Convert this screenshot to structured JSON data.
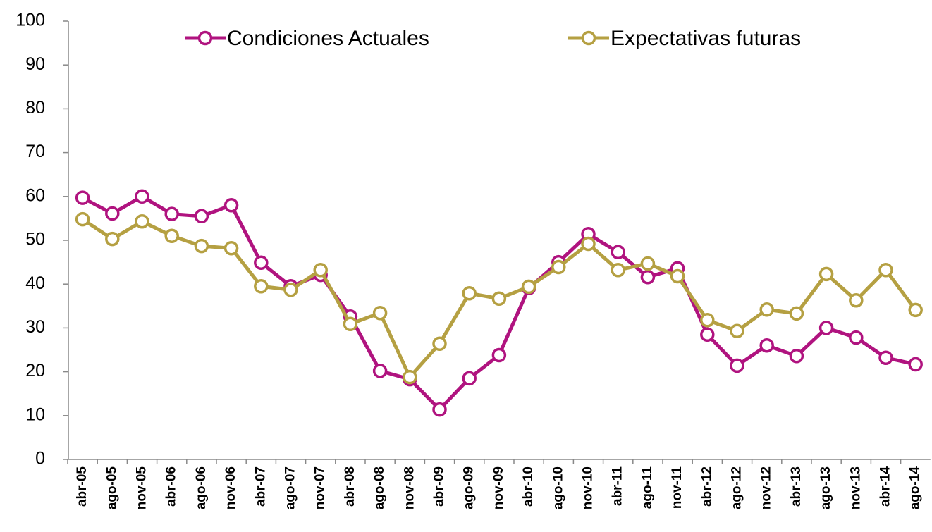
{
  "chart_data": {
    "type": "line",
    "categories": [
      "abr-05",
      "ago-05",
      "nov-05",
      "abr-06",
      "ago-06",
      "nov-06",
      "abr-07",
      "ago-07",
      "nov-07",
      "abr-08",
      "ago-08",
      "nov-08",
      "abr-09",
      "ago-09",
      "nov-09",
      "abr-10",
      "ago-10",
      "nov-10",
      "abr-11",
      "ago-11",
      "nov-11",
      "abr-12",
      "ago-12",
      "nov-12",
      "abr-13",
      "ago-13",
      "nov-13",
      "abr-14",
      "ago-14"
    ],
    "series": [
      {
        "name": "Condiciones Actuales",
        "color": "#b0137f",
        "values": [
          59.7,
          56.1,
          60.0,
          56.0,
          55.5,
          58.0,
          44.9,
          39.5,
          42.1,
          32.6,
          20.2,
          18.3,
          11.4,
          18.5,
          23.8,
          39.1,
          45.0,
          51.4,
          47.3,
          41.6,
          43.6,
          28.5,
          21.4,
          26.0,
          23.6,
          30.0,
          27.8,
          23.2,
          21.7
        ]
      },
      {
        "name": "Expectativas futuras",
        "color": "#b5a042",
        "values": [
          54.8,
          50.3,
          54.3,
          51.0,
          48.7,
          48.2,
          39.5,
          38.7,
          43.2,
          30.9,
          33.4,
          18.8,
          26.4,
          37.9,
          36.7,
          39.4,
          43.9,
          49.2,
          43.2,
          44.7,
          41.8,
          31.8,
          29.3,
          34.2,
          33.3,
          42.3,
          36.3,
          43.2,
          34.1
        ]
      }
    ],
    "ylim": [
      0,
      100
    ],
    "yticks": [
      0,
      10,
      20,
      30,
      40,
      50,
      60,
      70,
      80,
      90,
      100
    ],
    "grid": false,
    "legend": "top"
  }
}
